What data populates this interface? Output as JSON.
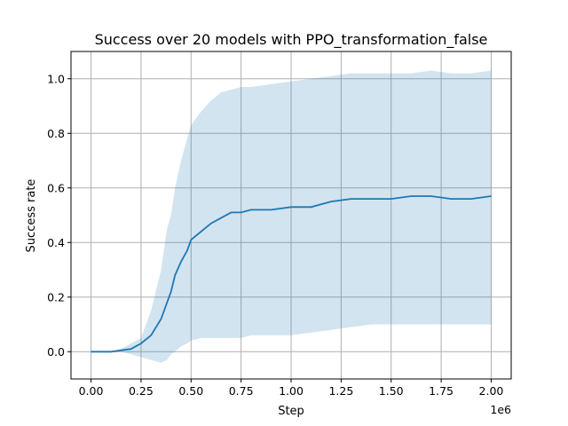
{
  "chart_data": {
    "type": "line",
    "title": "Success over 20 models with PPO_transformation_false",
    "xlabel": "Step",
    "ylabel": "Success rate",
    "x_multiplier_label": "1e6",
    "xlim": [
      -0.1,
      2.1
    ],
    "ylim": [
      -0.1,
      1.1
    ],
    "x_ticks": [
      0.0,
      0.25,
      0.5,
      0.75,
      1.0,
      1.25,
      1.5,
      1.75,
      2.0
    ],
    "x_tick_labels": [
      "0.00",
      "0.25",
      "0.50",
      "0.75",
      "1.00",
      "1.25",
      "1.50",
      "1.75",
      "2.00"
    ],
    "y_ticks": [
      0.0,
      0.2,
      0.4,
      0.6,
      0.8,
      1.0
    ],
    "y_tick_labels": [
      "0.0",
      "0.2",
      "0.4",
      "0.6",
      "0.8",
      "1.0"
    ],
    "grid": true,
    "colors": {
      "line": "#1f77b4",
      "band": "#1f77b4"
    },
    "series": [
      {
        "x": [
          0.0,
          0.1,
          0.15,
          0.2,
          0.25,
          0.3,
          0.35,
          0.38,
          0.4,
          0.42,
          0.45,
          0.48,
          0.5,
          0.55,
          0.6,
          0.65,
          0.7,
          0.75,
          0.8,
          0.9,
          1.0,
          1.1,
          1.2,
          1.3,
          1.4,
          1.5,
          1.6,
          1.7,
          1.8,
          1.9,
          2.0
        ],
        "y": [
          0.0,
          0.0,
          0.005,
          0.01,
          0.03,
          0.06,
          0.12,
          0.18,
          0.22,
          0.28,
          0.33,
          0.37,
          0.41,
          0.44,
          0.47,
          0.49,
          0.51,
          0.51,
          0.52,
          0.52,
          0.53,
          0.53,
          0.55,
          0.56,
          0.56,
          0.56,
          0.57,
          0.57,
          0.56,
          0.56,
          0.57
        ],
        "upper": [
          0.0,
          0.0,
          0.01,
          0.03,
          0.05,
          0.15,
          0.3,
          0.45,
          0.5,
          0.6,
          0.7,
          0.78,
          0.83,
          0.88,
          0.92,
          0.95,
          0.96,
          0.97,
          0.97,
          0.98,
          0.99,
          1.0,
          1.01,
          1.02,
          1.02,
          1.02,
          1.02,
          1.03,
          1.02,
          1.02,
          1.03
        ],
        "lower": [
          0.0,
          0.0,
          0.0,
          -0.01,
          -0.02,
          -0.03,
          -0.04,
          -0.03,
          -0.01,
          0.0,
          0.02,
          0.03,
          0.04,
          0.05,
          0.05,
          0.05,
          0.05,
          0.05,
          0.06,
          0.06,
          0.06,
          0.07,
          0.08,
          0.09,
          0.1,
          0.1,
          0.1,
          0.1,
          0.1,
          0.1,
          0.1
        ]
      }
    ]
  }
}
